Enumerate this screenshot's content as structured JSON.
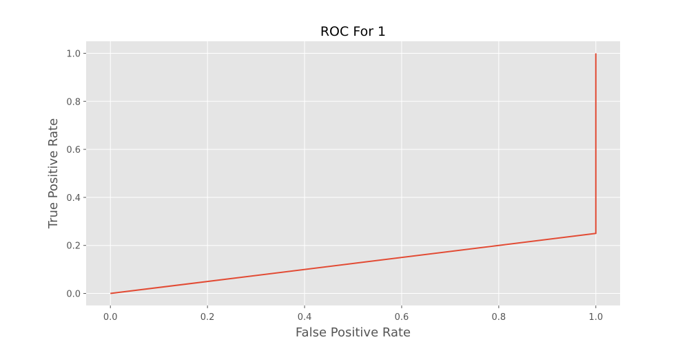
{
  "chart_data": {
    "type": "line",
    "title": "ROC For 1",
    "xlabel": "False Positive Rate",
    "ylabel": "True Positive Rate",
    "xlim": [
      -0.05,
      1.05
    ],
    "ylim": [
      -0.05,
      1.05
    ],
    "xticks": [
      0.0,
      0.2,
      0.4,
      0.6,
      0.8,
      1.0
    ],
    "yticks": [
      0.0,
      0.2,
      0.4,
      0.6,
      0.8,
      1.0
    ],
    "xtick_labels": [
      "0.0",
      "0.2",
      "0.4",
      "0.6",
      "0.8",
      "1.0"
    ],
    "ytick_labels": [
      "0.0",
      "0.2",
      "0.4",
      "0.6",
      "0.8",
      "1.0"
    ],
    "grid": true,
    "legend": false,
    "series": [
      {
        "color": "#E24A33",
        "x": [
          0.0,
          1.0,
          1.0
        ],
        "y": [
          0.0,
          0.25,
          1.0
        ]
      }
    ]
  },
  "colors": {
    "plot_background": "#E5E5E5",
    "grid": "#FFFFFF",
    "line": "#E24A33"
  }
}
